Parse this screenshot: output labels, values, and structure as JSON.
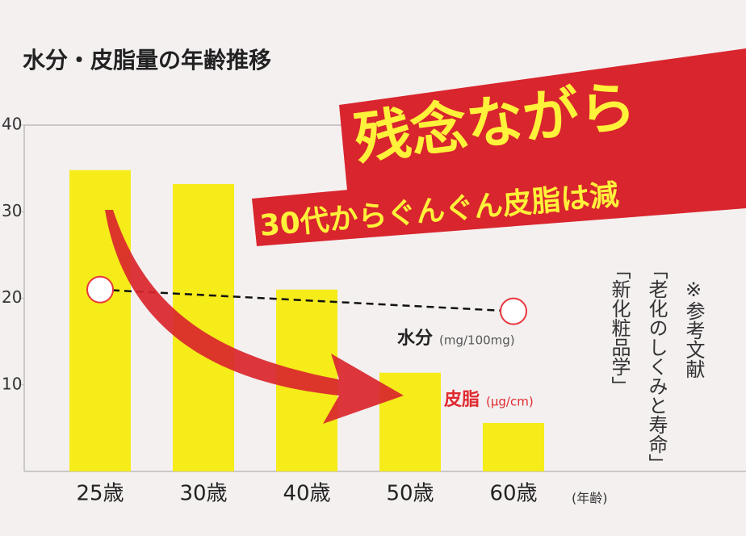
{
  "chart_data": {
    "type": "bar",
    "title": "水分・皮脂量の年齢推移",
    "banner": "残念ながら",
    "banner_sub": "30代からぐんぐん皮脂は減",
    "reference": [
      "※参考文献",
      "「老化のしくみと寿命」",
      "「新化粧品学」"
    ],
    "x_label": "(年齢)",
    "categories": [
      "25歳",
      "30歳",
      "40歳",
      "50歳",
      "60歳"
    ],
    "series": [
      {
        "name": "皮脂",
        "unit": "(μg/cm)",
        "type": "bar",
        "color": "#f5ec1a",
        "values": [
          34.8,
          33.2,
          21.0,
          11.4,
          5.6
        ]
      },
      {
        "name": "水分",
        "unit": "(mg/100mg)",
        "type": "line",
        "color": "#e8363c",
        "values": [
          21.0,
          null,
          null,
          null,
          18.5
        ]
      }
    ],
    "ylim": [
      0,
      40
    ],
    "yticks": [
      10,
      20,
      30,
      40
    ],
    "grid": false
  }
}
